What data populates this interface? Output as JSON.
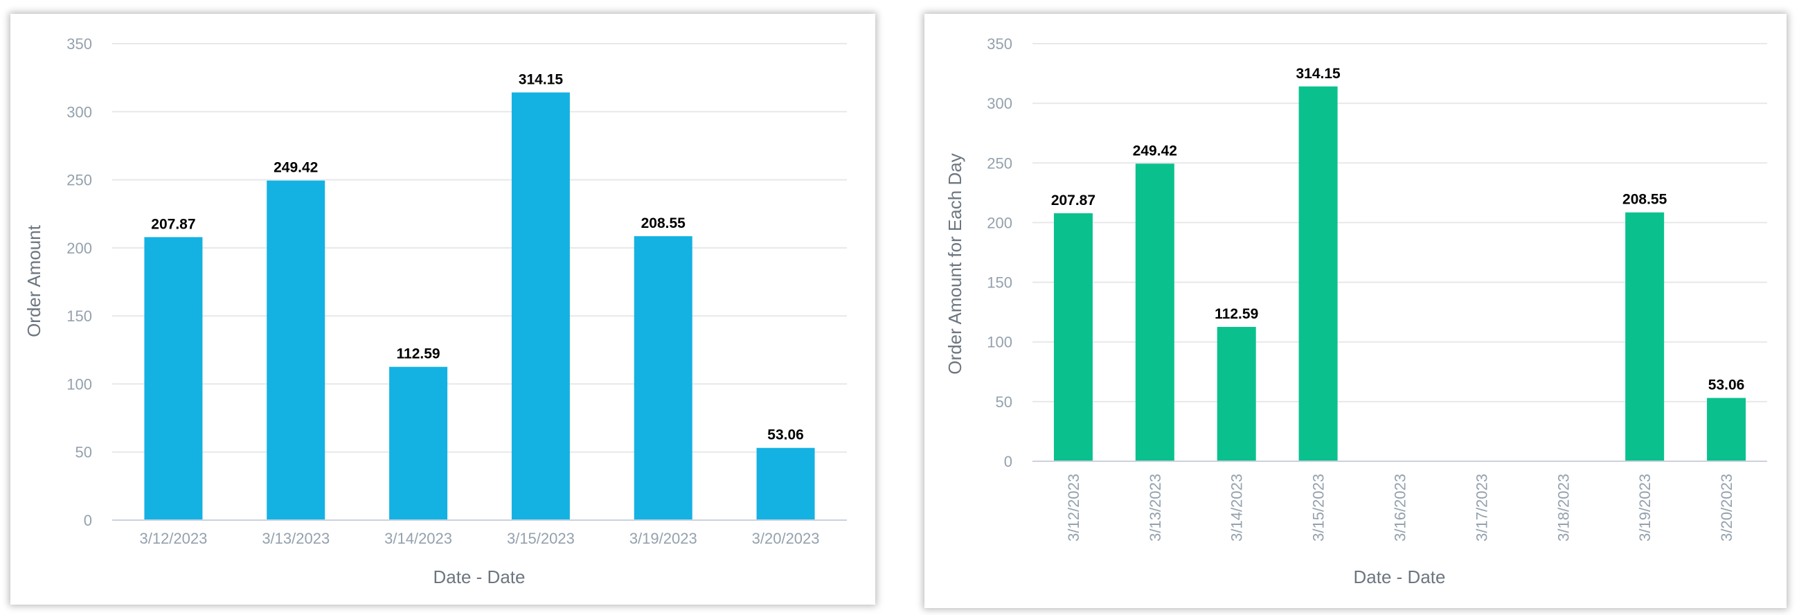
{
  "chart_data": [
    {
      "type": "bar",
      "categories": [
        "3/12/2023",
        "3/13/2023",
        "3/14/2023",
        "3/15/2023",
        "3/19/2023",
        "3/20/2023"
      ],
      "values": [
        207.87,
        249.42,
        112.59,
        314.15,
        208.55,
        53.06
      ],
      "data_labels": [
        "207.87",
        "249.42",
        "112.59",
        "314.15",
        "208.55",
        "53.06"
      ],
      "xlabel": "Date - Date",
      "ylabel": "Order Amount",
      "ylim": [
        0,
        350
      ],
      "yticks": [
        "0",
        "50",
        "100",
        "150",
        "200",
        "250",
        "300",
        "350"
      ],
      "grid": true,
      "color": "#14b2e2"
    },
    {
      "type": "bar",
      "categories": [
        "3/12/2023",
        "3/13/2023",
        "3/14/2023",
        "3/15/2023",
        "3/16/2023",
        "3/17/2023",
        "3/18/2023",
        "3/19/2023",
        "3/20/2023"
      ],
      "values": [
        207.87,
        249.42,
        112.59,
        314.15,
        null,
        null,
        null,
        208.55,
        53.06
      ],
      "data_labels": [
        "207.87",
        "249.42",
        "112.59",
        "314.15",
        "",
        "",
        "",
        "208.55",
        "53.06"
      ],
      "xlabel": "Date - Date",
      "ylabel": "Order Amount for Each Day",
      "ylim": [
        0,
        350
      ],
      "yticks": [
        "0",
        "50",
        "100",
        "150",
        "200",
        "250",
        "300",
        "350"
      ],
      "grid": true,
      "x_tick_rotation": "vertical",
      "color": "#0ac18e"
    }
  ]
}
